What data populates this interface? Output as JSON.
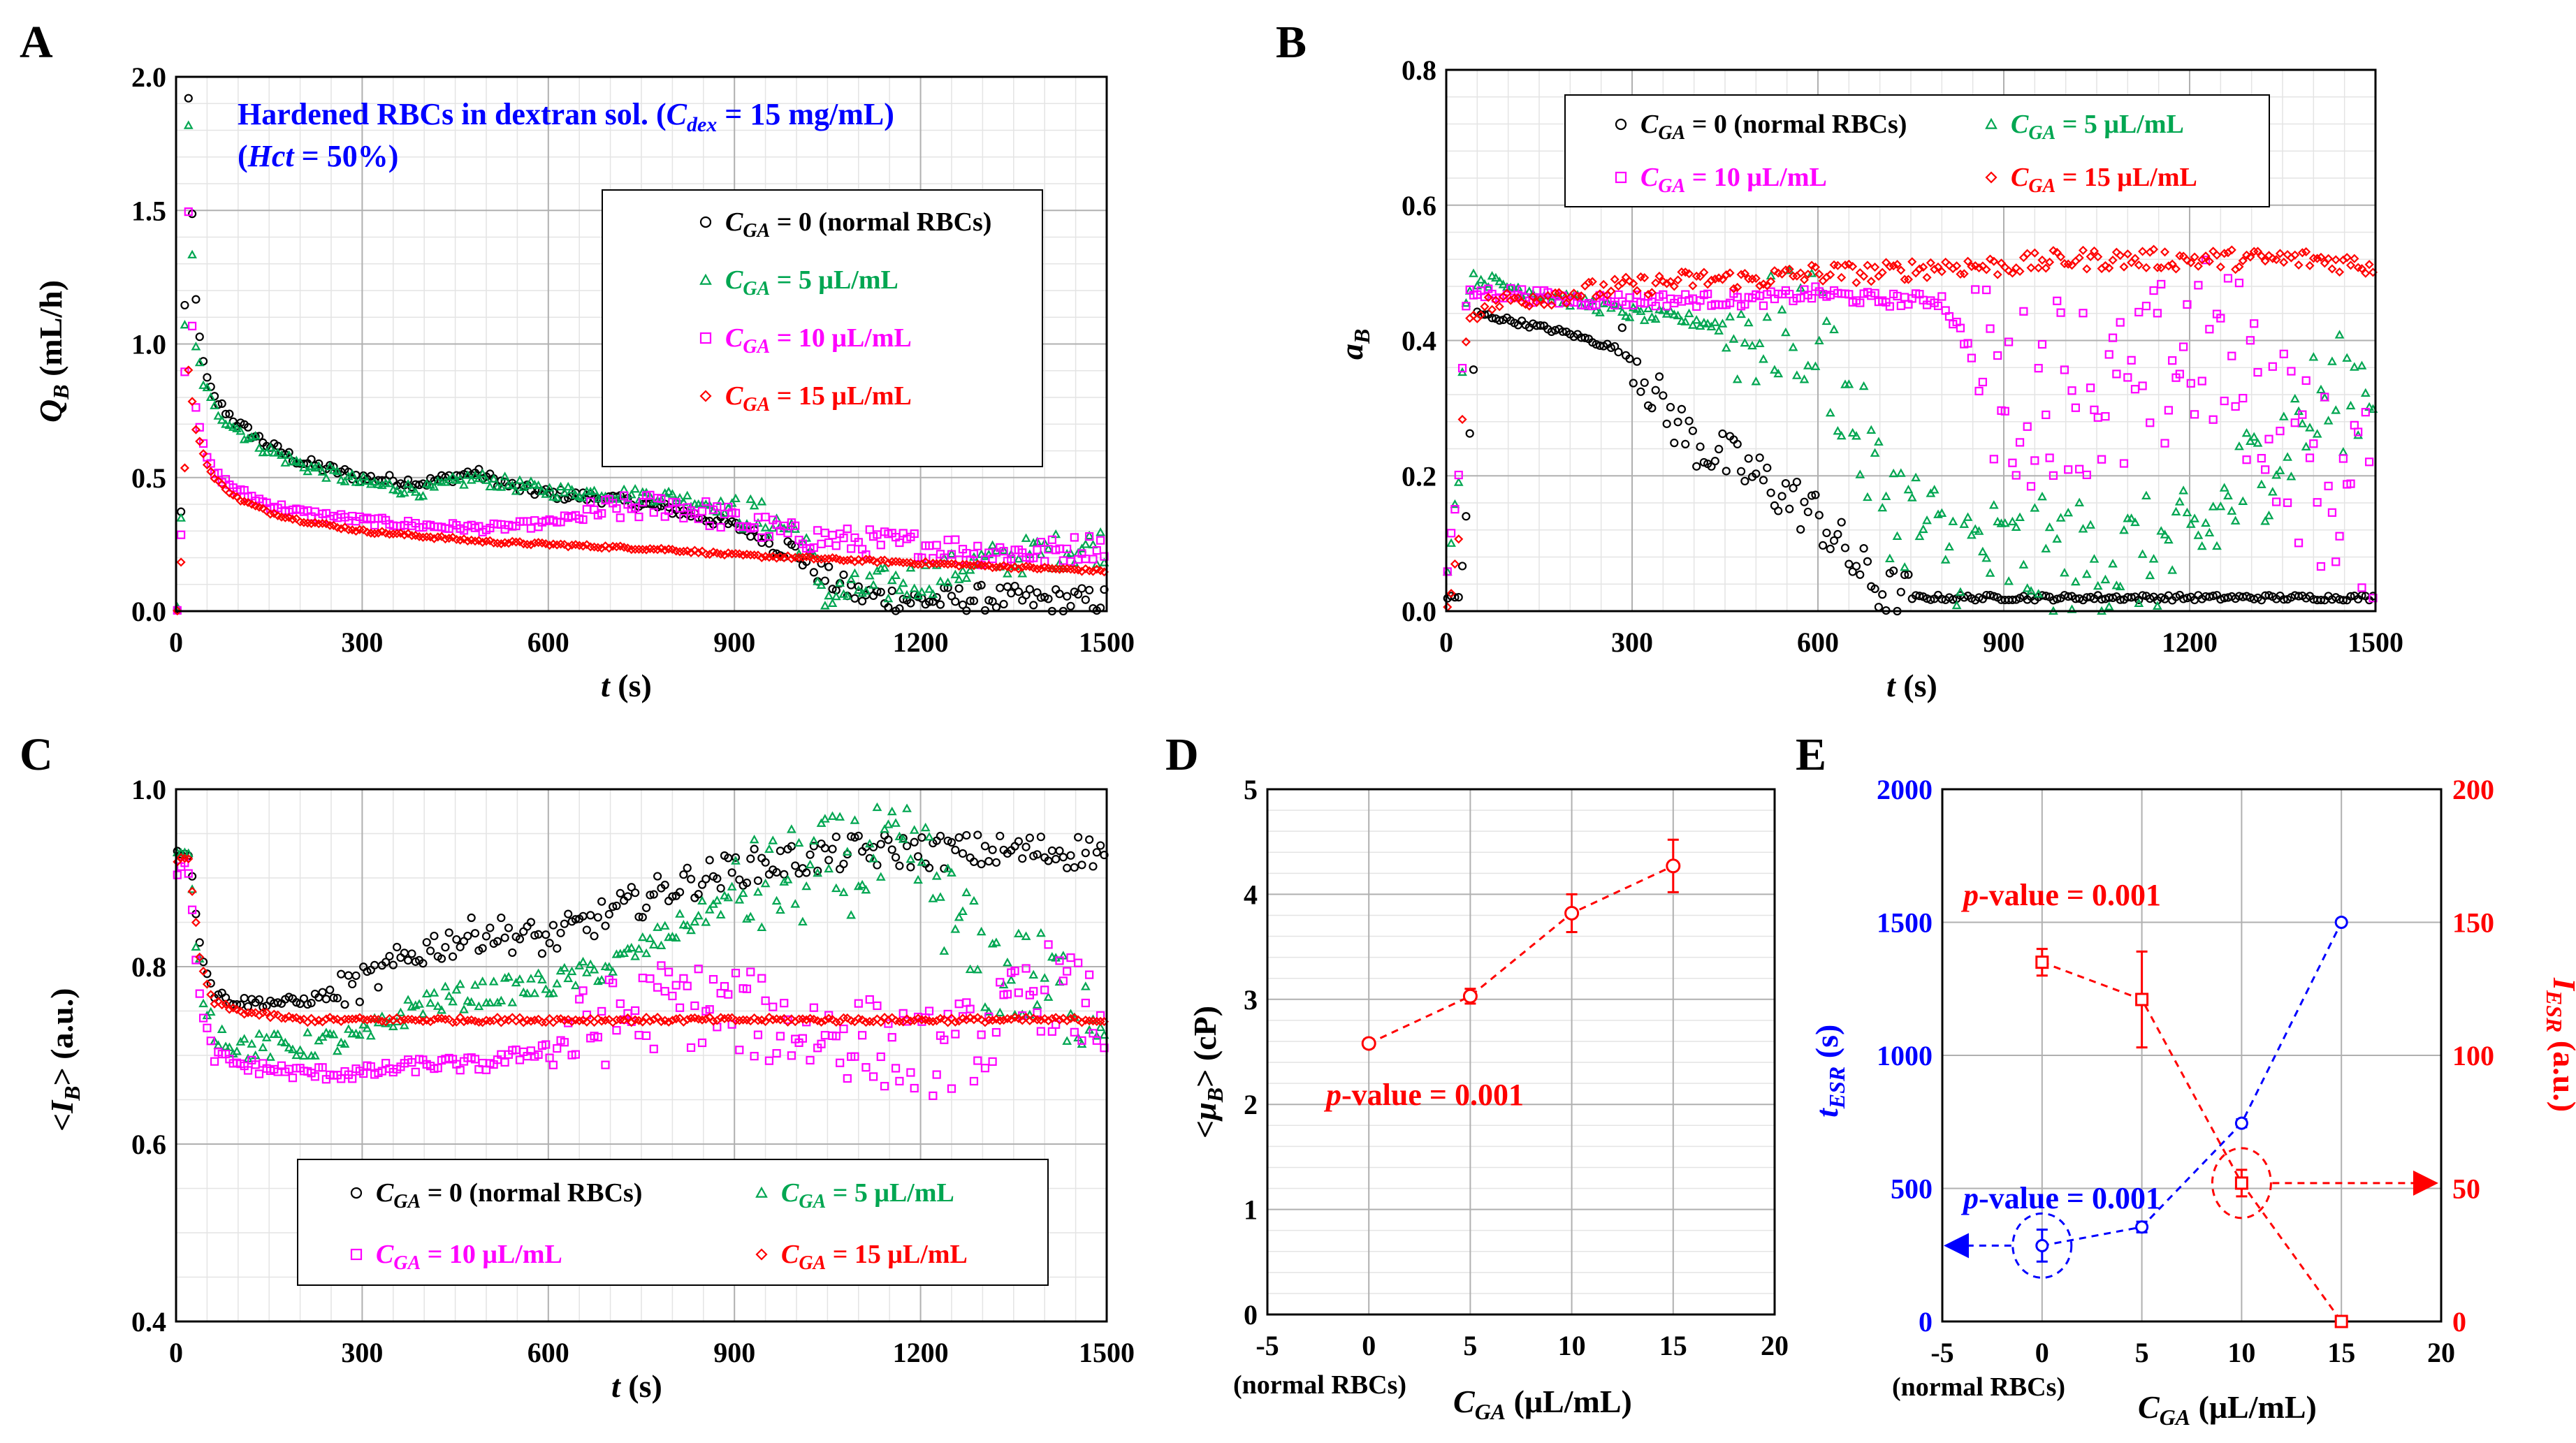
{
  "figure": {
    "panel_letters": [
      "A",
      "B",
      "C",
      "D",
      "E"
    ],
    "time_ticks": [
      "0",
      "300",
      "600",
      "900",
      "1200",
      "1500"
    ],
    "cga_ticks": [
      "-5",
      "0",
      "5",
      "10",
      "15",
      "20"
    ],
    "normal_rbc_note": "(normal RBCs)",
    "pvalue_text": "-value = 0.001",
    "pvalue_p": "p",
    "colors": {
      "black": "#000000",
      "green": "#00A651",
      "magenta": "#FF00FF",
      "red": "#FF0000",
      "blue": "#0000FF"
    }
  },
  "legend_labels": {
    "c": "C",
    "ga": "GA",
    "l0": " = 0 (normal RBCs)",
    "l5": " = 5 μL/mL",
    "l10": " = 10 μL/mL",
    "l15": " = 15 μL/mL"
  },
  "chart_data": [
    {
      "panel": "A",
      "type": "scatter",
      "title_line1": "Hardened RBCs in dextran sol. (",
      "title_cdex": "C",
      "title_dex": "dex",
      "title_line1_end": " = 15 mg/mL)",
      "title_line2_hct": "Hct",
      "title_line2_end": " = 50%)",
      "title_line2_open": "(",
      "xlabel_t": "t",
      "xlabel_unit": " (s)",
      "ylabel_q": "Q",
      "ylabel_b": "B",
      "ylabel_unit": " (mL/h)",
      "xlim": [
        0,
        1500
      ],
      "ylim": [
        0,
        2.0
      ],
      "yticks": [
        "0.0",
        "0.5",
        "1.0",
        "1.5",
        "2.0"
      ],
      "series": [
        {
          "name": "CGA = 0 (normal RBCs)",
          "x": [
            5,
            20,
            30,
            45,
            60,
            100,
            150,
            200,
            300,
            400,
            480,
            550,
            600,
            700,
            800,
            900,
            1000,
            1050,
            1100,
            1200,
            1300,
            1400,
            1500
          ],
          "y": [
            0.0,
            1.9,
            1.2,
            0.9,
            0.8,
            0.7,
            0.62,
            0.56,
            0.5,
            0.48,
            0.52,
            0.46,
            0.44,
            0.42,
            0.38,
            0.32,
            0.22,
            0.12,
            0.06,
            0.04,
            0.05,
            0.04,
            0.04
          ]
        },
        {
          "name": "CGA = 5 μL/mL",
          "x": [
            5,
            20,
            30,
            45,
            60,
            100,
            150,
            200,
            300,
            400,
            480,
            550,
            600,
            700,
            800,
            900,
            1000,
            1050,
            1100,
            1200,
            1300,
            1400,
            1500
          ],
          "y": [
            0.0,
            1.8,
            1.0,
            0.85,
            0.76,
            0.68,
            0.6,
            0.55,
            0.48,
            0.45,
            0.5,
            0.47,
            0.45,
            0.44,
            0.43,
            0.38,
            0.3,
            0.05,
            0.08,
            0.12,
            0.18,
            0.22,
            0.25
          ]
        },
        {
          "name": "CGA = 10 μL/mL",
          "x": [
            5,
            20,
            30,
            45,
            60,
            100,
            150,
            200,
            300,
            400,
            500,
            600,
            700,
            800,
            900,
            1000,
            1100,
            1200,
            1300,
            1400,
            1500
          ],
          "y": [
            0.0,
            1.5,
            0.8,
            0.6,
            0.52,
            0.45,
            0.4,
            0.37,
            0.34,
            0.32,
            0.31,
            0.33,
            0.38,
            0.4,
            0.34,
            0.28,
            0.26,
            0.25,
            0.22,
            0.22,
            0.25
          ]
        },
        {
          "name": "CGA = 15 μL/mL",
          "x": [
            5,
            20,
            30,
            45,
            60,
            100,
            150,
            200,
            300,
            400,
            500,
            600,
            700,
            800,
            900,
            1000,
            1100,
            1200,
            1300,
            1400,
            1500
          ],
          "y": [
            0.0,
            0.9,
            0.7,
            0.58,
            0.5,
            0.42,
            0.37,
            0.34,
            0.3,
            0.28,
            0.26,
            0.25,
            0.24,
            0.23,
            0.21,
            0.2,
            0.19,
            0.18,
            0.17,
            0.16,
            0.15
          ]
        }
      ]
    },
    {
      "panel": "B",
      "type": "scatter",
      "xlabel_t": "t",
      "xlabel_unit": " (s)",
      "ylabel_a": "a",
      "ylabel_b": "B",
      "xlim": [
        0,
        1500
      ],
      "ylim": [
        0,
        0.8
      ],
      "yticks": [
        "0.0",
        "0.2",
        "0.4",
        "0.6",
        "0.8"
      ],
      "series": [
        {
          "name": "CGA = 0 (normal RBCs)",
          "x": [
            0,
            20,
            30,
            40,
            50,
            100,
            200,
            300,
            350,
            400,
            500,
            600,
            650,
            700,
            750,
            800,
            900,
            1000,
            1200,
            1400,
            1500
          ],
          "y": [
            0.02,
            0.02,
            0.1,
            0.3,
            0.44,
            0.43,
            0.41,
            0.38,
            0.3,
            0.25,
            0.2,
            0.14,
            0.08,
            0.03,
            0.02,
            0.02,
            0.02,
            0.02,
            0.02,
            0.02,
            0.02
          ]
        },
        {
          "name": "CGA = 5 μL/mL",
          "x": [
            0,
            20,
            30,
            40,
            60,
            100,
            200,
            300,
            400,
            500,
            600,
            650,
            700,
            800,
            900,
            1000,
            1100,
            1200,
            1300,
            1400,
            1500
          ],
          "y": [
            0.05,
            0.2,
            0.45,
            0.49,
            0.49,
            0.48,
            0.46,
            0.44,
            0.43,
            0.41,
            0.42,
            0.3,
            0.18,
            0.1,
            0.08,
            0.08,
            0.08,
            0.09,
            0.2,
            0.3,
            0.35
          ]
        },
        {
          "name": "CGA = 10 μL/mL",
          "x": [
            0,
            20,
            30,
            40,
            60,
            100,
            200,
            300,
            400,
            500,
            600,
            700,
            800,
            900,
            1000,
            1100,
            1200,
            1300,
            1400,
            1500
          ],
          "y": [
            0.05,
            0.2,
            0.45,
            0.47,
            0.47,
            0.47,
            0.46,
            0.46,
            0.46,
            0.46,
            0.47,
            0.46,
            0.46,
            0.3,
            0.35,
            0.3,
            0.4,
            0.35,
            0.2,
            0.15
          ]
        },
        {
          "name": "CGA = 15 μL/mL",
          "x": [
            0,
            20,
            30,
            40,
            60,
            100,
            200,
            300,
            400,
            500,
            600,
            700,
            800,
            900,
            1000,
            1100,
            1200,
            1300,
            1400,
            1500
          ],
          "y": [
            0.0,
            0.1,
            0.4,
            0.44,
            0.45,
            0.46,
            0.47,
            0.48,
            0.49,
            0.49,
            0.5,
            0.5,
            0.51,
            0.51,
            0.52,
            0.52,
            0.52,
            0.52,
            0.52,
            0.51
          ]
        }
      ]
    },
    {
      "panel": "C",
      "type": "scatter",
      "xlabel_t": "t",
      "xlabel_unit": " (s)",
      "ylabel_open": "<",
      "ylabel_i": "I",
      "ylabel_b": "B",
      "ylabel_close": "> (a.u.)",
      "xlim": [
        0,
        1500
      ],
      "ylim": [
        0.4,
        1.0
      ],
      "yticks": [
        "0.4",
        "0.6",
        "0.8",
        "1.0"
      ],
      "series": [
        {
          "name": "CGA = 0 (normal RBCs)",
          "x": [
            0,
            20,
            40,
            60,
            100,
            200,
            300,
            400,
            500,
            600,
            700,
            800,
            900,
            1000,
            1100,
            1200,
            1300,
            1400,
            1500
          ],
          "y": [
            0.93,
            0.93,
            0.82,
            0.77,
            0.76,
            0.76,
            0.78,
            0.82,
            0.84,
            0.83,
            0.86,
            0.89,
            0.91,
            0.92,
            0.93,
            0.93,
            0.93,
            0.93,
            0.93
          ]
        },
        {
          "name": "CGA = 5 μL/mL",
          "x": [
            0,
            20,
            40,
            60,
            100,
            200,
            300,
            400,
            500,
            600,
            700,
            800,
            900,
            1000,
            1100,
            1200,
            1300,
            1400,
            1500
          ],
          "y": [
            0.92,
            0.92,
            0.78,
            0.73,
            0.71,
            0.71,
            0.72,
            0.76,
            0.77,
            0.78,
            0.8,
            0.84,
            0.88,
            0.9,
            0.92,
            0.92,
            0.8,
            0.78,
            0.75
          ]
        },
        {
          "name": "CGA = 10 μL/mL",
          "x": [
            0,
            20,
            40,
            60,
            100,
            200,
            300,
            400,
            500,
            600,
            700,
            800,
            900,
            1000,
            1100,
            1200,
            1300,
            1400,
            1500
          ],
          "y": [
            0.91,
            0.91,
            0.75,
            0.7,
            0.69,
            0.68,
            0.68,
            0.69,
            0.69,
            0.71,
            0.74,
            0.76,
            0.75,
            0.73,
            0.72,
            0.7,
            0.72,
            0.78,
            0.74
          ]
        },
        {
          "name": "CGA = 15 μL/mL",
          "x": [
            0,
            20,
            40,
            60,
            100,
            200,
            300,
            400,
            500,
            600,
            700,
            800,
            900,
            1000,
            1100,
            1200,
            1300,
            1400,
            1500
          ],
          "y": [
            0.92,
            0.92,
            0.8,
            0.76,
            0.75,
            0.74,
            0.74,
            0.74,
            0.74,
            0.74,
            0.74,
            0.74,
            0.74,
            0.74,
            0.74,
            0.74,
            0.74,
            0.74,
            0.74
          ]
        }
      ]
    },
    {
      "panel": "D",
      "type": "scatter",
      "xlabel_c": "C",
      "xlabel_ga": "GA",
      "xlabel_unit": " (μL/mL)",
      "ylabel_open": "<",
      "ylabel_mu": "μ",
      "ylabel_b": "B",
      "ylabel_close": "> (cP)",
      "xlim": [
        -5,
        20
      ],
      "ylim": [
        0,
        5
      ],
      "yticks": [
        "0",
        "1",
        "2",
        "3",
        "4",
        "5"
      ],
      "series": [
        {
          "name": "<μB>",
          "x": [
            0,
            5,
            10,
            15
          ],
          "y": [
            2.58,
            3.03,
            3.82,
            4.27
          ],
          "err": [
            0.04,
            0.07,
            0.18,
            0.25
          ]
        }
      ]
    },
    {
      "panel": "E",
      "type": "scatter",
      "xlabel_c": "C",
      "xlabel_ga": "GA",
      "xlabel_unit": " (μL/mL)",
      "ylabel_left_t": "t",
      "ylabel_left_sub": "ESR",
      "ylabel_left_unit": " (s)",
      "ylabel_right_i": "I",
      "ylabel_right_sub": "ESR",
      "ylabel_right_unit": " (a.u.)",
      "xlim": [
        -5,
        20
      ],
      "ylim_left": [
        0,
        2000
      ],
      "ylim_right": [
        0,
        200
      ],
      "yticks_left": [
        "0",
        "500",
        "1000",
        "1500",
        "2000"
      ],
      "yticks_right": [
        "0",
        "50",
        "100",
        "150",
        "200"
      ],
      "series": [
        {
          "name": "tESR",
          "axis": "left",
          "x": [
            0,
            5,
            10,
            15
          ],
          "y": [
            285,
            355,
            745,
            1500
          ],
          "err": [
            60,
            20,
            15,
            0
          ]
        },
        {
          "name": "IESR",
          "axis": "right",
          "x": [
            0,
            5,
            10,
            15
          ],
          "y": [
            135,
            121,
            52,
            0
          ],
          "err": [
            5,
            18,
            5,
            0
          ]
        }
      ]
    }
  ]
}
